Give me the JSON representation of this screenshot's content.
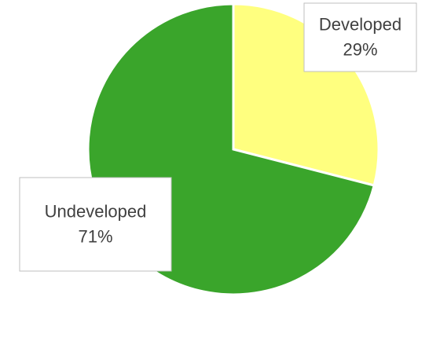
{
  "chart_data": {
    "type": "pie",
    "categories": [
      "Developed",
      "Undeveloped"
    ],
    "values": [
      29,
      71
    ],
    "value_labels": [
      "29%",
      "71%"
    ],
    "colors": [
      "#ffff7f",
      "#3aa52b"
    ]
  }
}
